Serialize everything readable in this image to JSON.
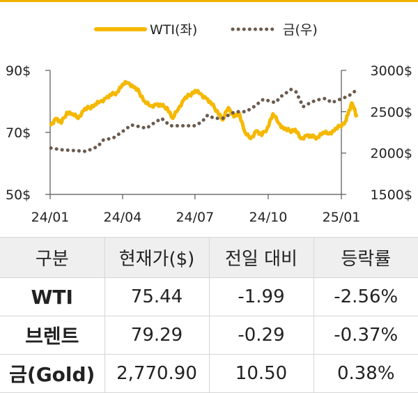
{
  "chart_data": {
    "type": "line",
    "x_ticks": [
      "24/01",
      "24/04",
      "24/07",
      "24/10",
      "25/01"
    ],
    "y_left_ticks": [
      "90$",
      "70$",
      "50$"
    ],
    "y_right_ticks": [
      "3000$",
      "2500$",
      "2000$",
      "1500$"
    ],
    "y_left_range": [
      50,
      90
    ],
    "y_right_range": [
      1500,
      3000
    ],
    "legend_position": "top",
    "series": [
      {
        "name": "WTI(좌)",
        "axis": "left",
        "style": "solid",
        "color": "#f5b800",
        "x": [
          "2024-01-02",
          "2024-01-08",
          "2024-01-15",
          "2024-01-22",
          "2024-01-29",
          "2024-02-05",
          "2024-02-12",
          "2024-02-19",
          "2024-02-26",
          "2024-03-04",
          "2024-03-11",
          "2024-03-18",
          "2024-03-25",
          "2024-04-01",
          "2024-04-08",
          "2024-04-15",
          "2024-04-22",
          "2024-04-29",
          "2024-05-06",
          "2024-05-13",
          "2024-05-20",
          "2024-05-27",
          "2024-06-03",
          "2024-06-10",
          "2024-06-17",
          "2024-06-24",
          "2024-07-01",
          "2024-07-08",
          "2024-07-15",
          "2024-07-22",
          "2024-07-29",
          "2024-08-05",
          "2024-08-12",
          "2024-08-19",
          "2024-08-26",
          "2024-09-02",
          "2024-09-09",
          "2024-09-16",
          "2024-09-23",
          "2024-09-30",
          "2024-10-07",
          "2024-10-14",
          "2024-10-21",
          "2024-10-28",
          "2024-11-04",
          "2024-11-11",
          "2024-11-18",
          "2024-11-25",
          "2024-12-02",
          "2024-12-09",
          "2024-12-16",
          "2024-12-23",
          "2024-12-30",
          "2025-01-06",
          "2025-01-10",
          "2025-01-14",
          "2025-01-17",
          "2025-01-20"
        ],
        "values": [
          72.5,
          74.5,
          73.0,
          76.5,
          76.0,
          74.5,
          77.0,
          78.0,
          79.0,
          80.0,
          81.0,
          82.0,
          83.0,
          85.5,
          86.0,
          84.5,
          83.0,
          80.0,
          78.5,
          79.0,
          78.5,
          78.0,
          74.5,
          77.5,
          80.5,
          82.0,
          83.5,
          82.5,
          81.0,
          79.0,
          77.0,
          74.0,
          78.0,
          75.0,
          76.0,
          70.0,
          68.0,
          70.5,
          69.0,
          71.5,
          76.0,
          73.0,
          71.0,
          70.5,
          71.0,
          68.0,
          69.0,
          68.5,
          68.5,
          70.0,
          69.5,
          70.5,
          72.0,
          73.5,
          76.5,
          79.5,
          77.5,
          75.44
        ]
      },
      {
        "name": "금(우)",
        "axis": "right",
        "style": "dotted",
        "color": "#6b5b4e",
        "x": [
          "2024-01-02",
          "2024-01-15",
          "2024-02-01",
          "2024-02-15",
          "2024-03-01",
          "2024-03-08",
          "2024-03-20",
          "2024-04-01",
          "2024-04-12",
          "2024-04-22",
          "2024-05-01",
          "2024-05-10",
          "2024-05-20",
          "2024-05-31",
          "2024-06-15",
          "2024-07-01",
          "2024-07-10",
          "2024-07-17",
          "2024-07-25",
          "2024-08-05",
          "2024-08-20",
          "2024-09-03",
          "2024-09-13",
          "2024-09-25",
          "2024-10-10",
          "2024-10-18",
          "2024-10-30",
          "2024-11-05",
          "2024-11-14",
          "2024-11-25",
          "2024-12-05",
          "2024-12-12",
          "2024-12-20",
          "2025-01-02",
          "2025-01-10",
          "2025-01-17",
          "2025-01-20"
        ],
        "values": [
          2060,
          2040,
          2030,
          2020,
          2080,
          2160,
          2180,
          2260,
          2340,
          2320,
          2300,
          2360,
          2420,
          2330,
          2330,
          2330,
          2380,
          2460,
          2420,
          2420,
          2500,
          2500,
          2560,
          2650,
          2610,
          2690,
          2770,
          2740,
          2560,
          2620,
          2650,
          2660,
          2610,
          2660,
          2690,
          2740,
          2770.9
        ]
      }
    ]
  },
  "table": {
    "headers": [
      "구분",
      "현재가($)",
      "전일 대비",
      "등락률"
    ],
    "rows": [
      [
        "WTI",
        "75.44",
        "-1.99",
        "-2.56%"
      ],
      [
        "브렌트",
        "79.29",
        "-0.29",
        "-0.37%"
      ],
      [
        "금(Gold)",
        "2,770.90",
        "10.50",
        "0.38%"
      ]
    ]
  }
}
